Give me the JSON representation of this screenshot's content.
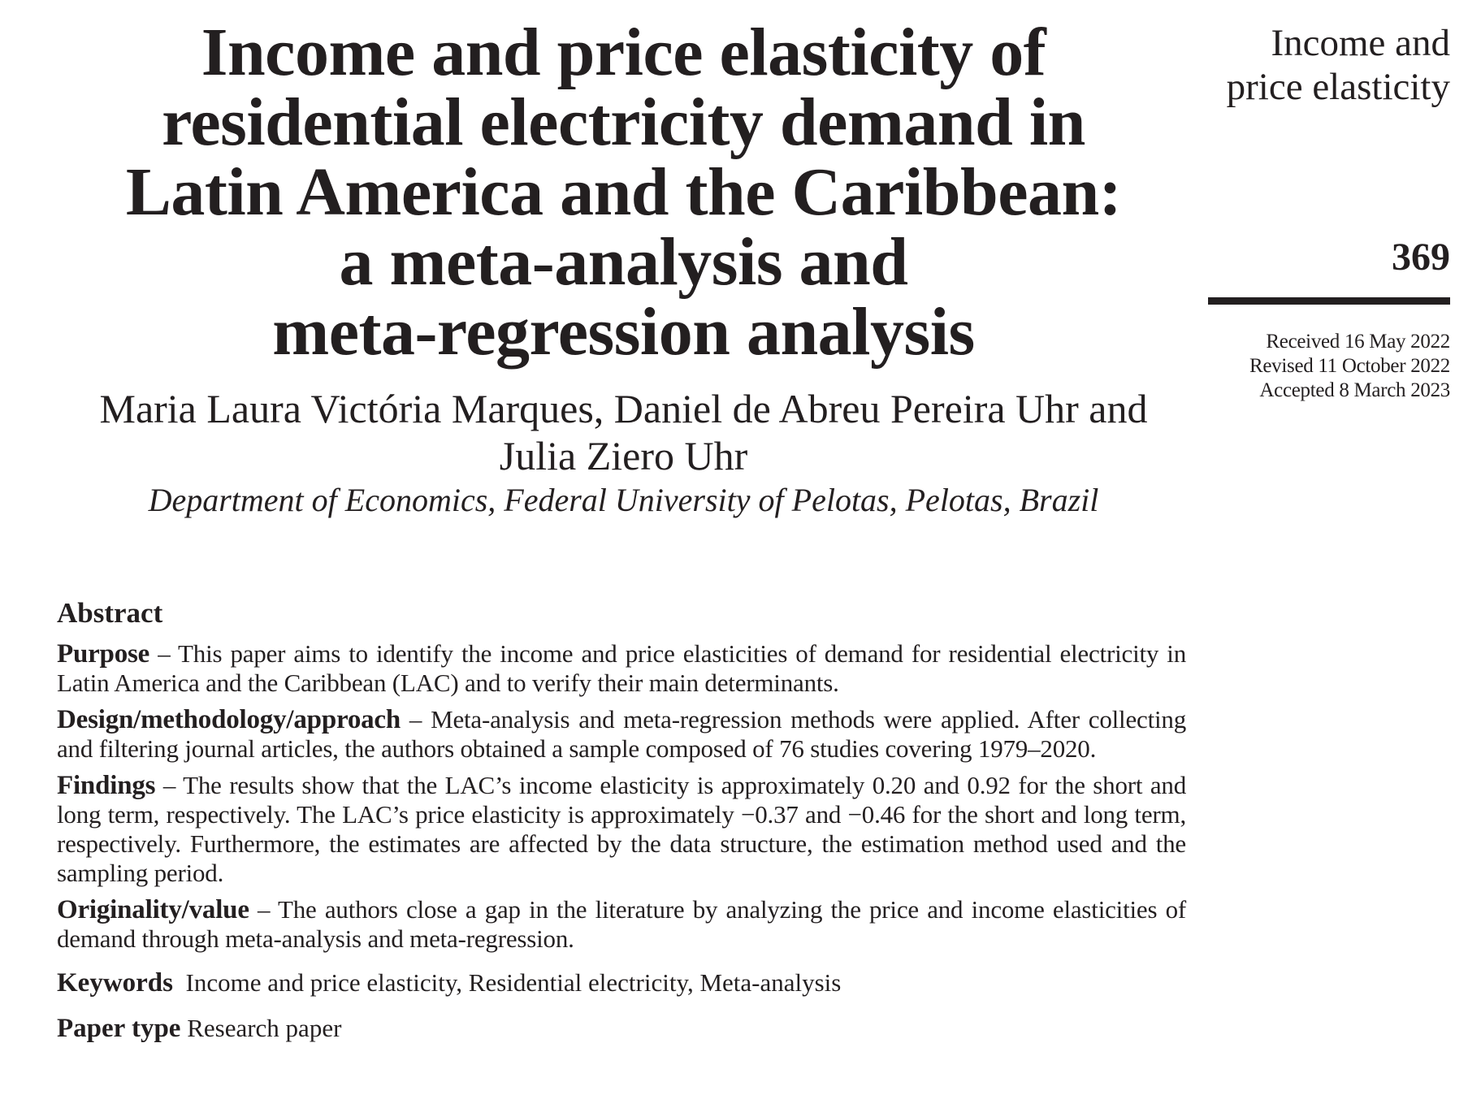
{
  "header": {
    "title": "Income and price elasticity of\nresidential electricity demand in\nLatin America and the Caribbean:\na meta-analysis and\nmeta-regression analysis",
    "authors": "Maria Laura Victória Marques, Daniel de Abreu Pereira Uhr and\nJulia Ziero Uhr",
    "affiliation": "Department of Economics, Federal University of Pelotas, Pelotas, Brazil"
  },
  "margin": {
    "running_head": "Income and\nprice elasticity",
    "page_number": "369",
    "received": "Received 16 May 2022",
    "revised": "Revised 11 October 2022",
    "accepted": "Accepted 8 March 2023"
  },
  "abstract": {
    "heading": "Abstract",
    "sections": [
      {
        "label": "Purpose",
        "separator": " – ",
        "text": "This paper aims to identify the income and price elasticities of demand for residential electricity in Latin America and the Caribbean (LAC) and to verify their main determinants."
      },
      {
        "label": "Design/methodology/approach",
        "separator": " – ",
        "text": "Meta-analysis and meta-regression methods were applied. After collecting and filtering journal articles, the authors obtained a sample composed of 76 studies covering 1979–2020."
      },
      {
        "label": "Findings",
        "separator": " – ",
        "text": "The results show that the LAC’s income elasticity is approximately 0.20 and 0.92 for the short and long term, respectively. The LAC’s price elasticity is approximately −0.37 and −0.46 for the short and long term, respectively. Furthermore, the estimates are affected by the data structure, the estimation method used and the sampling period."
      },
      {
        "label": "Originality/value",
        "separator": " – ",
        "text": "The authors close a gap in the literature by analyzing the price and income elasticities of demand through meta-analysis and meta-regression."
      }
    ],
    "keywords_label": "Keywords",
    "keywords": "Income and price elasticity, Residential electricity, Meta-analysis",
    "paper_type_label": "Paper type",
    "paper_type": "Research paper"
  }
}
